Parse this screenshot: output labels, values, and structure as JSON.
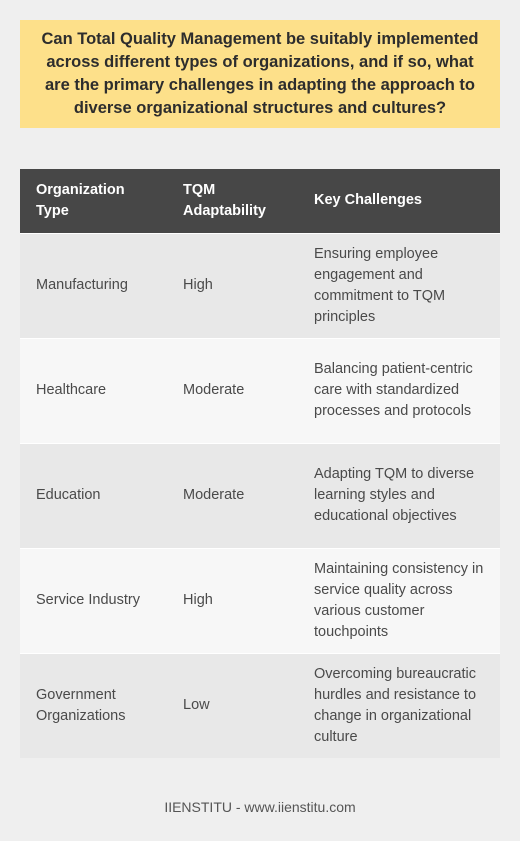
{
  "question": "Can Total Quality Management be suitably implemented across different types of organizations, and if so, what are the primary challenges in adapting the approach to diverse organizational structures and cultures?",
  "table": {
    "headers": [
      "Organization Type",
      "TQM Adaptability",
      "Key Challenges"
    ],
    "rows": [
      [
        "Manufacturing",
        "High",
        "Ensuring employee engagement and commitment to TQM principles"
      ],
      [
        "Healthcare",
        "Moderate",
        "Balancing patient-centric care with standardized processes and protocols"
      ],
      [
        "Education",
        "Moderate",
        "Adapting TQM to diverse learning styles and educational objectives"
      ],
      [
        "Service Industry",
        "High",
        "Maintaining consistency in service quality across various customer touchpoints"
      ],
      [
        "Government Organizations",
        "Low",
        "Overcoming bureaucratic hurdles and resistance to change in organizational culture"
      ]
    ]
  },
  "footer": "IIENSTITU - www.iienstitu.com",
  "colors": {
    "question_background": "#fde08a",
    "header_background": "#474747",
    "page_background": "#efefef"
  }
}
